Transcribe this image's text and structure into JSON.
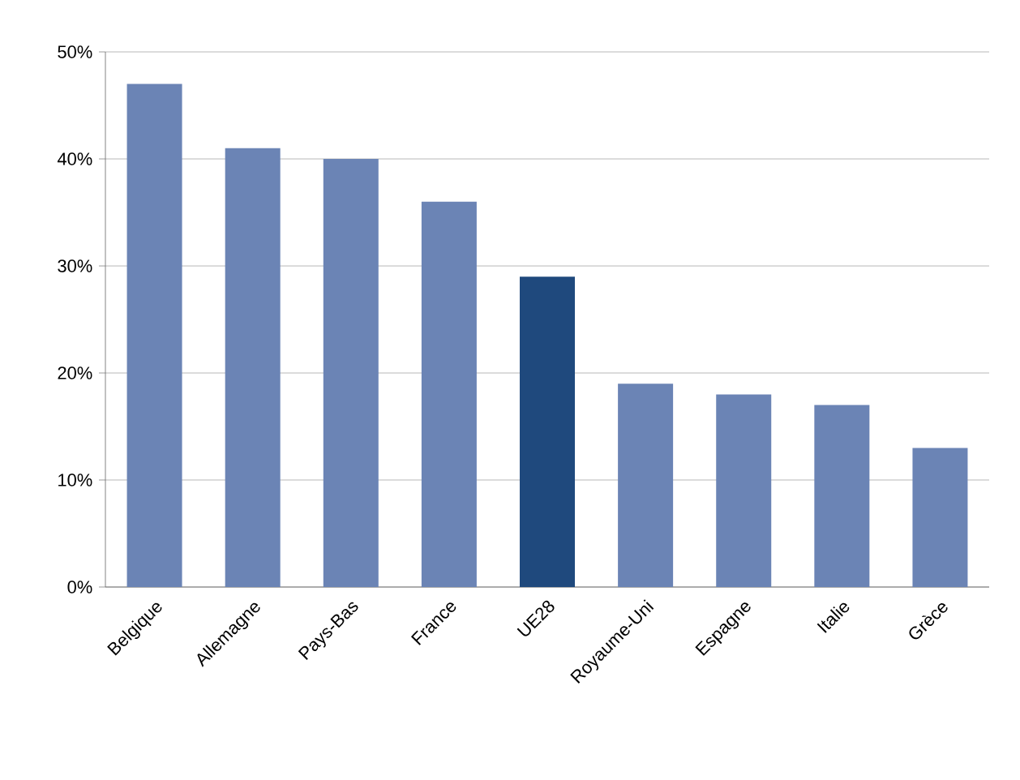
{
  "chart_data": {
    "type": "bar",
    "categories": [
      "Belgique",
      "Allemagne",
      "Pays-Bas",
      "France",
      "UE28",
      "Royaume-Uni",
      "Espagne",
      "Italie",
      "Grèce"
    ],
    "values": [
      47,
      41,
      40,
      36,
      29,
      19,
      18,
      17,
      13
    ],
    "colors": [
      "#6b84b5",
      "#6b84b5",
      "#6b84b5",
      "#6b84b5",
      "#1f497d",
      "#6b84b5",
      "#6b84b5",
      "#6b84b5",
      "#6b84b5"
    ],
    "ylim": [
      0,
      50
    ],
    "yticks": [
      {
        "value": 0,
        "label": "0%"
      },
      {
        "value": 10,
        "label": "10%"
      },
      {
        "value": 20,
        "label": "20%"
      },
      {
        "value": 30,
        "label": "30%"
      },
      {
        "value": 40,
        "label": "40%"
      },
      {
        "value": 50,
        "label": "50%"
      }
    ],
    "grid": "y"
  }
}
